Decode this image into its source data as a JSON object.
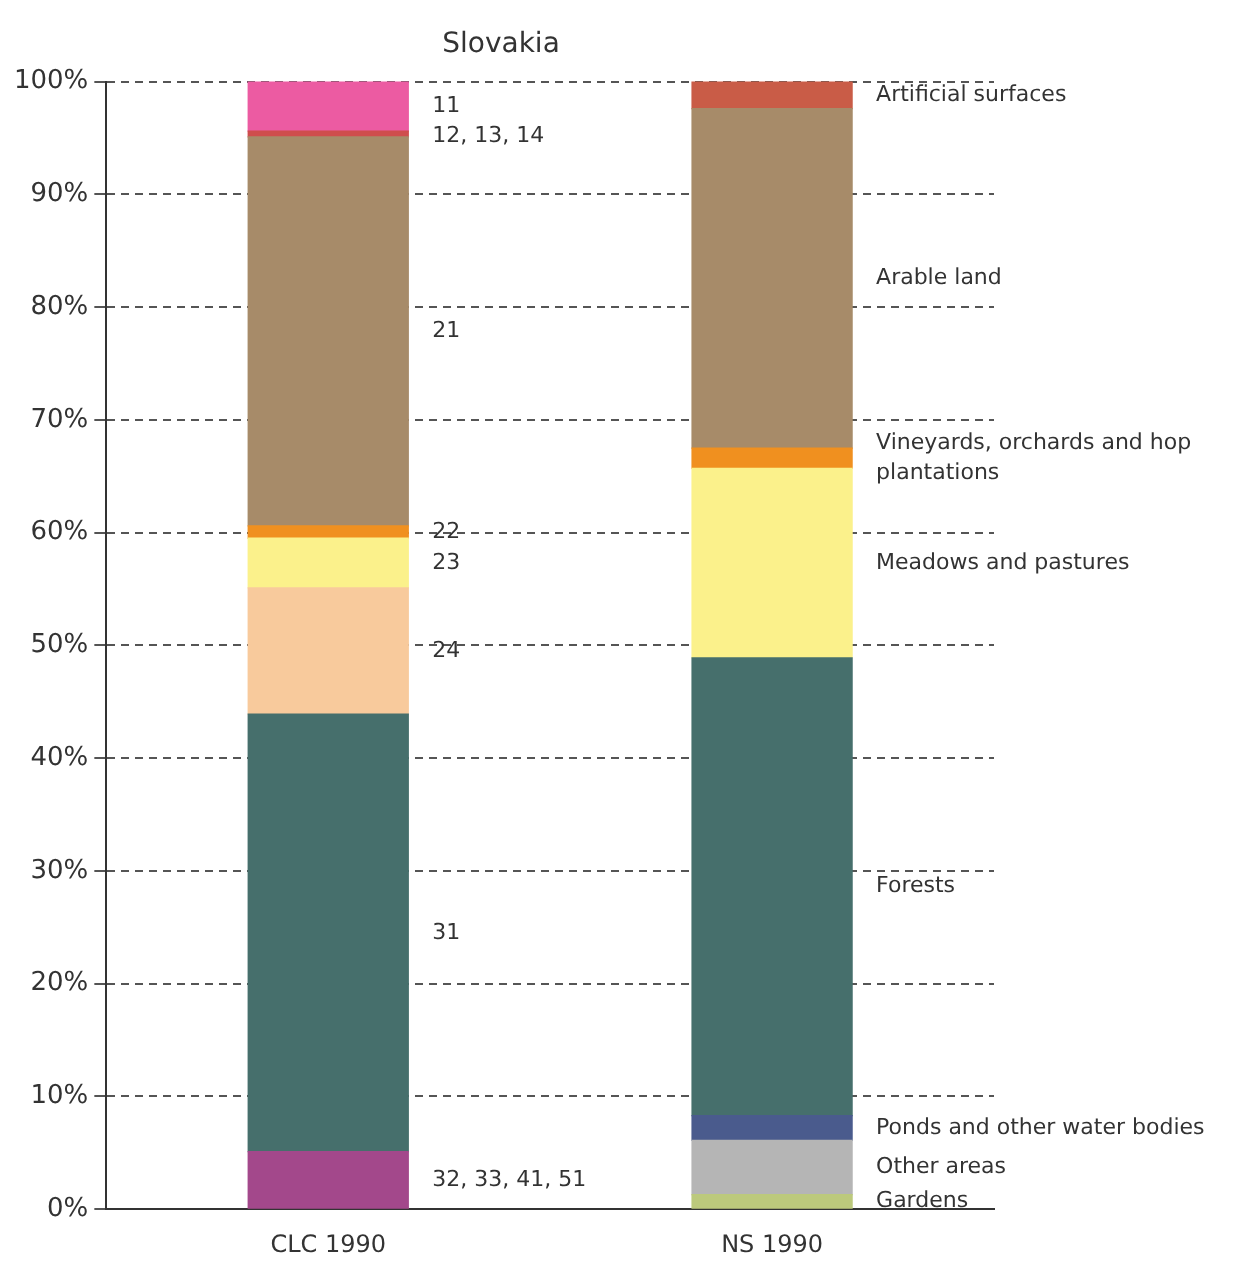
{
  "chart_data": {
    "type": "bar",
    "title": "Slovakia",
    "stacked": true,
    "categories": [
      "CLC 1990",
      "NS 1990"
    ],
    "series": [
      {
        "name": "32, 33, 41, 51",
        "color": "#a3488b",
        "values": [
          5.1,
          null
        ]
      },
      {
        "name": "31",
        "color": "#466f6c",
        "values": [
          38.8,
          null
        ]
      },
      {
        "name": "24",
        "color": "#f8ca9c",
        "values": [
          11.2,
          null
        ]
      },
      {
        "name": "23",
        "color": "#fbf18b",
        "values": [
          4.4,
          null
        ]
      },
      {
        "name": "22",
        "color": "#f0901f",
        "values": [
          1.1,
          null
        ]
      },
      {
        "name": "21",
        "color": "#a78b69",
        "values": [
          34.5,
          null
        ]
      },
      {
        "name": "12, 13, 14",
        "color": "#cf4d4d",
        "values": [
          0.5,
          null
        ]
      },
      {
        "name": "11",
        "color": "#ec5ba2",
        "values": [
          4.4,
          null
        ]
      },
      {
        "name": "Gardens",
        "color": "#bcc97c",
        "values": [
          null,
          1.3
        ]
      },
      {
        "name": "Other areas",
        "color": "#b5b5b5",
        "values": [
          null,
          4.8
        ]
      },
      {
        "name": "Ponds and other water bodies",
        "color": "#4a5b8d",
        "values": [
          null,
          2.2
        ]
      },
      {
        "name": "Forests",
        "color": "#466f6c",
        "values": [
          null,
          40.6
        ]
      },
      {
        "name": "Meadows and pastures",
        "color": "#fbf18b",
        "values": [
          null,
          16.8
        ]
      },
      {
        "name": "Vineyards, orchards and hop plantations",
        "color": "#f0901f",
        "values": [
          null,
          1.8
        ]
      },
      {
        "name": "Arable land",
        "color": "#a78b69",
        "values": [
          null,
          30.1
        ]
      },
      {
        "name": "Artificial surfaces",
        "color": "#c95c47",
        "values": [
          null,
          2.4
        ]
      }
    ],
    "ylim": [
      0,
      100
    ],
    "yticks": [
      {
        "value": 0,
        "label": "0%"
      },
      {
        "value": 10,
        "label": "10%"
      },
      {
        "value": 20,
        "label": "20%"
      },
      {
        "value": 30,
        "label": "30%"
      },
      {
        "value": 40,
        "label": "40%"
      },
      {
        "value": 50,
        "label": "50%"
      },
      {
        "value": 60,
        "label": "60%"
      },
      {
        "value": 70,
        "label": "70%"
      },
      {
        "value": 80,
        "label": "80%"
      },
      {
        "value": 90,
        "label": "90%"
      },
      {
        "value": 100,
        "label": "100%"
      }
    ],
    "grid": "y",
    "legend": false
  }
}
